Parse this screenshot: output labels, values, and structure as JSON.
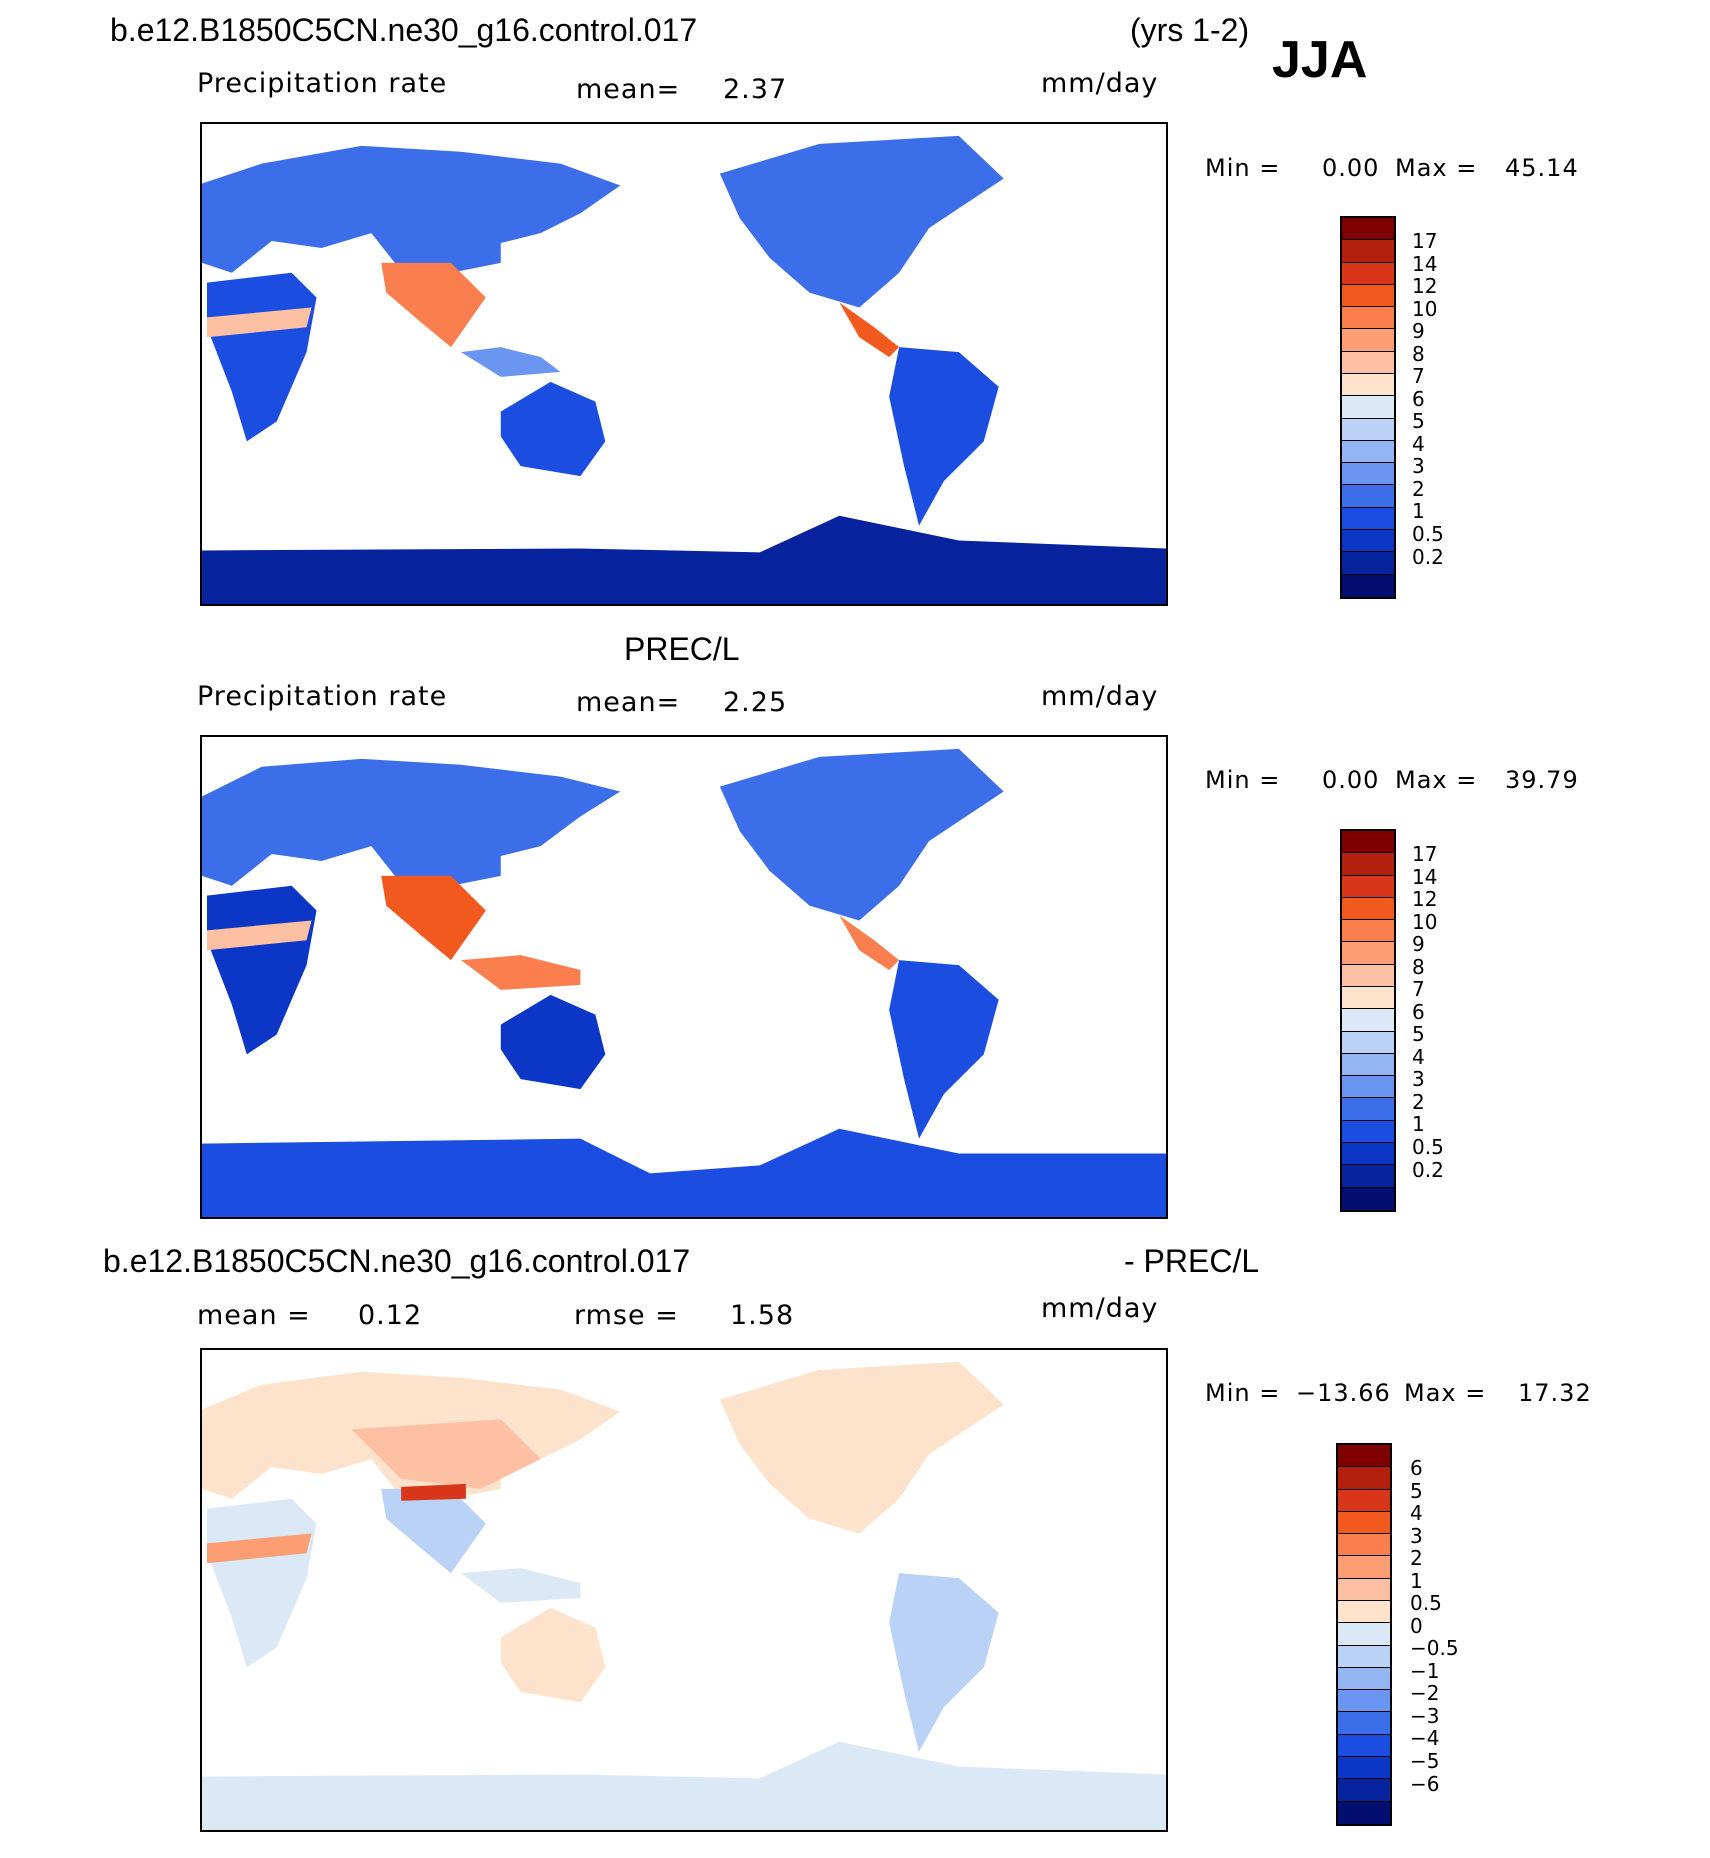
{
  "case_title": "b.e12.B1850C5CN.ne30_g16.control.017",
  "years": "(yrs 1-2)",
  "season": "JJA",
  "ref_title": "PREC/L",
  "diff_title_left": "b.e12.B1850C5CN.ne30_g16.control.017",
  "diff_title_right": "- PREC/L",
  "panels": [
    {
      "variable": "Precipitation rate",
      "mean_label": "mean=",
      "mean_value": "2.37",
      "units": "mm/day",
      "min_label": "Min =",
      "min_value": "0.00",
      "max_label": "Max =",
      "max_value": "45.14",
      "ticks": [
        "17",
        "14",
        "12",
        "10",
        "9",
        "8",
        "7",
        "6",
        "5",
        "4",
        "3",
        "2",
        "1",
        "0.5",
        "0.2"
      ]
    },
    {
      "variable": "Precipitation rate",
      "mean_label": "mean=",
      "mean_value": "2.25",
      "units": "mm/day",
      "min_label": "Min =",
      "min_value": "0.00",
      "max_label": "Max =",
      "max_value": "39.79",
      "ticks": [
        "17",
        "14",
        "12",
        "10",
        "9",
        "8",
        "7",
        "6",
        "5",
        "4",
        "3",
        "2",
        "1",
        "0.5",
        "0.2"
      ]
    },
    {
      "mean_label": "mean =",
      "mean_value": "0.12",
      "rmse_label": "rmse =",
      "rmse_value": "1.58",
      "units": "mm/day",
      "min_label": "Min =",
      "min_value": "−13.66",
      "max_label": "Max =",
      "max_value": "17.32",
      "ticks": [
        "6",
        "5",
        "4",
        "3",
        "2",
        "1",
        "0.5",
        "0",
        "−0.5",
        "−1",
        "−2",
        "−3",
        "−4",
        "−5",
        "−6"
      ]
    }
  ],
  "colors": {
    "precip_scale": [
      "#7f0000",
      "#b2200d",
      "#d7361a",
      "#f2591f",
      "#fa7e4e",
      "#fc9d74",
      "#fdc0a2",
      "#fde2cc",
      "#dbe9f6",
      "#b9d2f5",
      "#93b6f3",
      "#6a95f0",
      "#3c6ee9",
      "#1b4ee0",
      "#0c36c6",
      "#06229c",
      "#020f70"
    ],
    "diff_scale": [
      "#7f0000",
      "#b2200d",
      "#d7361a",
      "#f2591f",
      "#fa7e4e",
      "#fc9d74",
      "#fdc0a2",
      "#fde2cc",
      "#dbe9f6",
      "#b9d2f5",
      "#93b6f3",
      "#6a95f0",
      "#3c6ee9",
      "#1b4ee0",
      "#0c36c6",
      "#06229c",
      "#020f70"
    ],
    "ocean": "#ffffff"
  }
}
